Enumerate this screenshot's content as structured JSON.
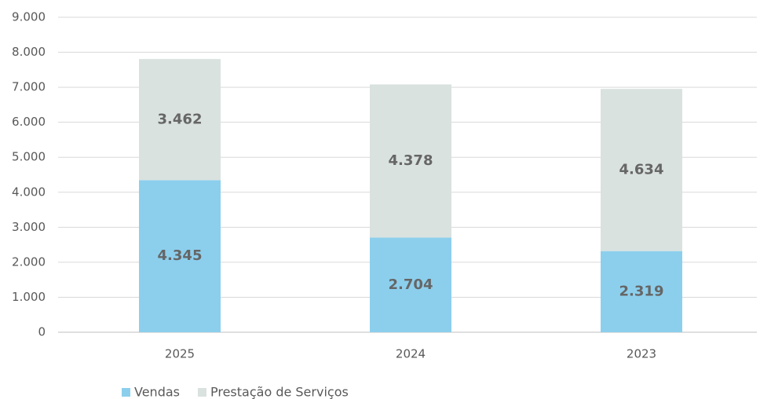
{
  "chart_data": {
    "type": "stacked_bar",
    "categories": [
      "2025",
      "2024",
      "2023"
    ],
    "series": [
      {
        "name": "Vendas",
        "color": "#8ccfed",
        "values": [
          4345,
          2704,
          2319
        ],
        "value_labels": [
          "4.345",
          "2.704",
          "2.319"
        ]
      },
      {
        "name": "Prestação de Serviços",
        "color": "#d9e2df",
        "values": [
          3462,
          4378,
          4634
        ],
        "value_labels": [
          "3.462",
          "4.378",
          "4.634"
        ]
      }
    ],
    "ylim": [
      0,
      9000
    ],
    "yticks": [
      0,
      {
        "value": 1000,
        "label": "1.000"
      },
      {
        "value": 2000,
        "label": "2.000"
      },
      {
        "value": 3000,
        "label": "3.000"
      },
      {
        "value": 4000,
        "label": "4.000"
      },
      {
        "value": 5000,
        "label": "5.000"
      },
      {
        "value": 6000,
        "label": "6.000"
      },
      {
        "value": 7000,
        "label": "7.000"
      },
      {
        "value": 8000,
        "label": "8.000"
      },
      {
        "value": 9000,
        "label": "9.000"
      }
    ],
    "grid": true,
    "legend": "bottom-left"
  }
}
